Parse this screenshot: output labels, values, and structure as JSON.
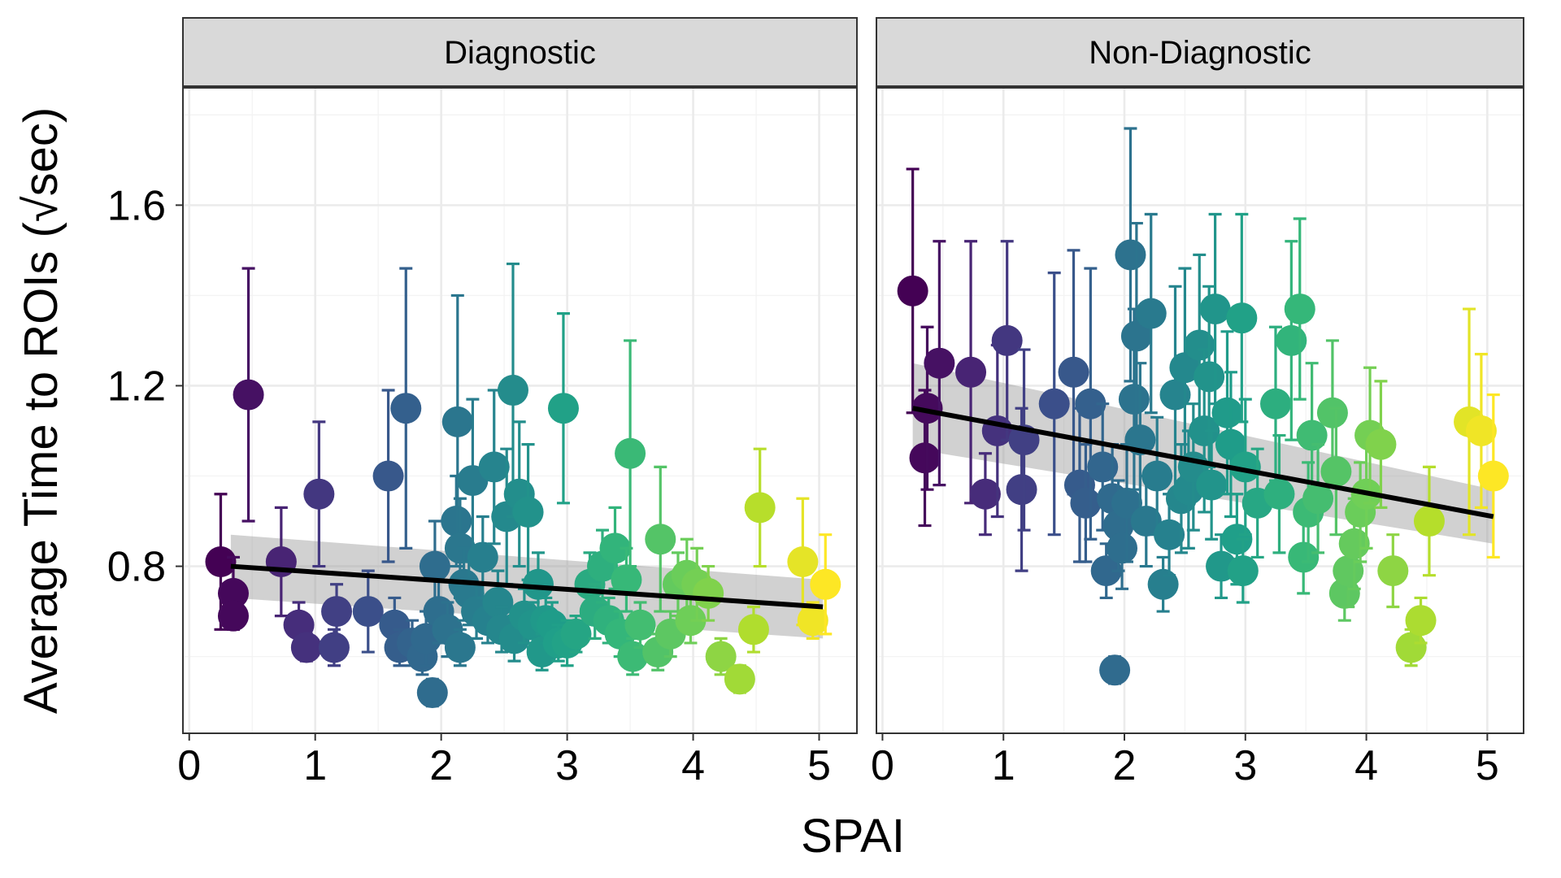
{
  "chart_data": {
    "type": "scatter",
    "xlabel": "SPAI",
    "ylabel": "Average Time to ROIs (√sec)",
    "xlim": [
      -0.05,
      5.3
    ],
    "ylim": [
      0.43,
      1.86
    ],
    "x_ticks": [
      0,
      1,
      2,
      3,
      4,
      5
    ],
    "y_ticks": [
      0.8,
      1.2,
      1.6
    ],
    "grid": true,
    "color_scale": "viridis",
    "colors": {
      "low": "#440154",
      "high": "#fde725",
      "trend_line": "#000000",
      "confidence_band": "#999999",
      "strip_background": "#d9d9d9",
      "grid": "#ebebeb"
    },
    "panels": [
      {
        "label": "Diagnostic",
        "trend": {
          "x": [
            0.33,
            5.03
          ],
          "y": [
            0.8,
            0.71
          ],
          "se_band_low": [
            0.73,
            0.64
          ],
          "se_band_high": [
            0.87,
            0.77
          ]
        },
        "points": [
          {
            "x": 0.25,
            "y": 0.81,
            "err": 0.15
          },
          {
            "x": 0.35,
            "y": 0.74,
            "err": 0.08
          },
          {
            "x": 0.35,
            "y": 0.69,
            "err": 0.03
          },
          {
            "x": 0.47,
            "y": 1.18,
            "err": 0.28
          },
          {
            "x": 0.73,
            "y": 0.81,
            "err": 0.12
          },
          {
            "x": 0.87,
            "y": 0.67,
            "err": 0.05
          },
          {
            "x": 0.93,
            "y": 0.62,
            "err": 0.03
          },
          {
            "x": 1.03,
            "y": 0.96,
            "err": 0.16
          },
          {
            "x": 1.15,
            "y": 0.62,
            "err": 0.04
          },
          {
            "x": 1.17,
            "y": 0.7,
            "err": 0.06
          },
          {
            "x": 1.42,
            "y": 0.7,
            "err": 0.09
          },
          {
            "x": 1.58,
            "y": 1.0,
            "err": 0.19
          },
          {
            "x": 1.63,
            "y": 0.67,
            "err": 0.06
          },
          {
            "x": 1.67,
            "y": 0.62,
            "err": 0.04
          },
          {
            "x": 1.72,
            "y": 1.15,
            "err": 0.31
          },
          {
            "x": 1.77,
            "y": 0.63,
            "err": 0.05
          },
          {
            "x": 1.85,
            "y": 0.6,
            "err": 0.04
          },
          {
            "x": 1.88,
            "y": 0.64,
            "err": 0.06
          },
          {
            "x": 1.93,
            "y": 0.52,
            "err": 0.03
          },
          {
            "x": 1.95,
            "y": 0.8,
            "err": 0.1
          },
          {
            "x": 1.98,
            "y": 0.7,
            "err": 0.07
          },
          {
            "x": 2.05,
            "y": 0.66,
            "err": 0.06
          },
          {
            "x": 2.12,
            "y": 0.9,
            "err": 0.1
          },
          {
            "x": 2.13,
            "y": 1.12,
            "err": 0.28
          },
          {
            "x": 2.15,
            "y": 0.84,
            "err": 0.11
          },
          {
            "x": 2.15,
            "y": 0.62,
            "err": 0.04
          },
          {
            "x": 2.18,
            "y": 0.76,
            "err": 0.08
          },
          {
            "x": 2.22,
            "y": 0.74,
            "err": 0.07
          },
          {
            "x": 2.25,
            "y": 0.99,
            "err": 0.18
          },
          {
            "x": 2.28,
            "y": 0.7,
            "err": 0.06
          },
          {
            "x": 2.33,
            "y": 0.82,
            "err": 0.09
          },
          {
            "x": 2.37,
            "y": 0.68,
            "err": 0.05
          },
          {
            "x": 2.42,
            "y": 1.02,
            "err": 0.17
          },
          {
            "x": 2.45,
            "y": 0.72,
            "err": 0.07
          },
          {
            "x": 2.48,
            "y": 0.66,
            "err": 0.05
          },
          {
            "x": 2.52,
            "y": 0.91,
            "err": 0.15
          },
          {
            "x": 2.57,
            "y": 1.19,
            "err": 0.28
          },
          {
            "x": 2.58,
            "y": 0.64,
            "err": 0.05
          },
          {
            "x": 2.62,
            "y": 0.96,
            "err": 0.16
          },
          {
            "x": 2.66,
            "y": 0.69,
            "err": 0.06
          },
          {
            "x": 2.69,
            "y": 0.92,
            "err": 0.15
          },
          {
            "x": 2.73,
            "y": 0.67,
            "err": 0.05
          },
          {
            "x": 2.77,
            "y": 0.76,
            "err": 0.07
          },
          {
            "x": 2.8,
            "y": 0.61,
            "err": 0.04
          },
          {
            "x": 2.83,
            "y": 0.68,
            "err": 0.05
          },
          {
            "x": 2.88,
            "y": 0.67,
            "err": 0.05
          },
          {
            "x": 2.93,
            "y": 0.63,
            "err": 0.04
          },
          {
            "x": 2.97,
            "y": 1.15,
            "err": 0.21
          },
          {
            "x": 3.0,
            "y": 0.63,
            "err": 0.05
          },
          {
            "x": 3.07,
            "y": 0.65,
            "err": 0.04
          },
          {
            "x": 3.18,
            "y": 0.76,
            "err": 0.07
          },
          {
            "x": 3.22,
            "y": 0.7,
            "err": 0.06
          },
          {
            "x": 3.28,
            "y": 0.8,
            "err": 0.08
          },
          {
            "x": 3.33,
            "y": 0.68,
            "err": 0.05
          },
          {
            "x": 3.38,
            "y": 0.84,
            "err": 0.09
          },
          {
            "x": 3.42,
            "y": 0.65,
            "err": 0.05
          },
          {
            "x": 3.47,
            "y": 0.77,
            "err": 0.07
          },
          {
            "x": 3.5,
            "y": 1.05,
            "err": 0.25
          },
          {
            "x": 3.52,
            "y": 0.6,
            "err": 0.04
          },
          {
            "x": 3.58,
            "y": 0.67,
            "err": 0.05
          },
          {
            "x": 3.72,
            "y": 0.61,
            "err": 0.04
          },
          {
            "x": 3.74,
            "y": 0.86,
            "err": 0.16
          },
          {
            "x": 3.82,
            "y": 0.65,
            "err": 0.05
          },
          {
            "x": 3.88,
            "y": 0.76,
            "err": 0.07
          },
          {
            "x": 3.95,
            "y": 0.78,
            "err": 0.08
          },
          {
            "x": 3.98,
            "y": 0.68,
            "err": 0.05
          },
          {
            "x": 4.03,
            "y": 0.76,
            "err": 0.08
          },
          {
            "x": 4.12,
            "y": 0.74,
            "err": 0.06
          },
          {
            "x": 4.22,
            "y": 0.6,
            "err": 0.04
          },
          {
            "x": 4.37,
            "y": 0.55,
            "err": 0.03
          },
          {
            "x": 4.48,
            "y": 0.66,
            "err": 0.05
          },
          {
            "x": 4.53,
            "y": 0.93,
            "err": 0.13
          },
          {
            "x": 4.87,
            "y": 0.81,
            "err": 0.14
          },
          {
            "x": 4.95,
            "y": 0.68,
            "err": 0.04
          },
          {
            "x": 5.05,
            "y": 0.76,
            "err": 0.11
          }
        ]
      },
      {
        "label": "Non-Diagnostic",
        "trend": {
          "x": [
            0.25,
            5.05
          ],
          "y": [
            1.15,
            0.91
          ],
          "se_band_low": [
            1.06,
            0.85
          ],
          "se_band_high": [
            1.25,
            0.97
          ]
        },
        "points": [
          {
            "x": 0.25,
            "y": 1.41,
            "err": 0.27
          },
          {
            "x": 0.35,
            "y": 1.04,
            "err": 0.15
          },
          {
            "x": 0.37,
            "y": 1.15,
            "err": 0.18
          },
          {
            "x": 0.47,
            "y": 1.25,
            "err": 0.27
          },
          {
            "x": 0.73,
            "y": 1.23,
            "err": 0.29
          },
          {
            "x": 0.85,
            "y": 0.96,
            "err": 0.09
          },
          {
            "x": 0.95,
            "y": 1.1,
            "err": 0.19
          },
          {
            "x": 1.03,
            "y": 1.3,
            "err": 0.22
          },
          {
            "x": 1.15,
            "y": 0.97,
            "err": 0.18
          },
          {
            "x": 1.17,
            "y": 1.08,
            "err": 0.2
          },
          {
            "x": 1.42,
            "y": 1.16,
            "err": 0.29
          },
          {
            "x": 1.58,
            "y": 1.23,
            "err": 0.27
          },
          {
            "x": 1.63,
            "y": 0.98,
            "err": 0.17
          },
          {
            "x": 1.68,
            "y": 0.94,
            "err": 0.13
          },
          {
            "x": 1.72,
            "y": 1.16,
            "err": 0.3
          },
          {
            "x": 1.82,
            "y": 1.02,
            "err": 0.14
          },
          {
            "x": 1.85,
            "y": 0.79,
            "err": 0.06
          },
          {
            "x": 1.9,
            "y": 0.95,
            "err": 0.12
          },
          {
            "x": 1.92,
            "y": 0.57,
            "err": 0.03
          },
          {
            "x": 1.95,
            "y": 0.89,
            "err": 0.1
          },
          {
            "x": 1.98,
            "y": 0.84,
            "err": 0.09
          },
          {
            "x": 2.02,
            "y": 0.94,
            "err": 0.13
          },
          {
            "x": 2.05,
            "y": 1.49,
            "err": 0.28
          },
          {
            "x": 2.08,
            "y": 1.17,
            "err": 0.2
          },
          {
            "x": 2.1,
            "y": 1.31,
            "err": 0.25
          },
          {
            "x": 2.13,
            "y": 1.08,
            "err": 0.17
          },
          {
            "x": 2.18,
            "y": 0.9,
            "err": 0.1
          },
          {
            "x": 2.22,
            "y": 1.36,
            "err": 0.22
          },
          {
            "x": 2.27,
            "y": 1.0,
            "err": 0.13
          },
          {
            "x": 2.32,
            "y": 0.76,
            "err": 0.06
          },
          {
            "x": 2.37,
            "y": 0.87,
            "err": 0.09
          },
          {
            "x": 2.42,
            "y": 1.18,
            "err": 0.24
          },
          {
            "x": 2.47,
            "y": 0.95,
            "err": 0.12
          },
          {
            "x": 2.5,
            "y": 1.24,
            "err": 0.22
          },
          {
            "x": 2.53,
            "y": 0.97,
            "err": 0.13
          },
          {
            "x": 2.57,
            "y": 1.02,
            "err": 0.14
          },
          {
            "x": 2.62,
            "y": 1.29,
            "err": 0.2
          },
          {
            "x": 2.66,
            "y": 1.1,
            "err": 0.18
          },
          {
            "x": 2.7,
            "y": 1.22,
            "err": 0.2
          },
          {
            "x": 2.72,
            "y": 0.98,
            "err": 0.12
          },
          {
            "x": 2.75,
            "y": 1.37,
            "err": 0.21
          },
          {
            "x": 2.8,
            "y": 0.8,
            "err": 0.07
          },
          {
            "x": 2.85,
            "y": 1.14,
            "err": 0.18
          },
          {
            "x": 2.88,
            "y": 1.07,
            "err": 0.16
          },
          {
            "x": 2.93,
            "y": 0.86,
            "err": 0.1
          },
          {
            "x": 2.97,
            "y": 1.35,
            "err": 0.23
          },
          {
            "x": 2.98,
            "y": 0.79,
            "err": 0.07
          },
          {
            "x": 3.0,
            "y": 1.02,
            "err": 0.15
          },
          {
            "x": 3.1,
            "y": 0.94,
            "err": 0.12
          },
          {
            "x": 3.25,
            "y": 1.16,
            "err": 0.17
          },
          {
            "x": 3.28,
            "y": 0.96,
            "err": 0.13
          },
          {
            "x": 3.38,
            "y": 1.3,
            "err": 0.22
          },
          {
            "x": 3.45,
            "y": 1.37,
            "err": 0.2
          },
          {
            "x": 3.48,
            "y": 0.82,
            "err": 0.08
          },
          {
            "x": 3.52,
            "y": 0.92,
            "err": 0.11
          },
          {
            "x": 3.55,
            "y": 1.09,
            "err": 0.16
          },
          {
            "x": 3.6,
            "y": 0.95,
            "err": 0.12
          },
          {
            "x": 3.72,
            "y": 1.14,
            "err": 0.16
          },
          {
            "x": 3.75,
            "y": 1.01,
            "err": 0.14
          },
          {
            "x": 3.82,
            "y": 0.74,
            "err": 0.06
          },
          {
            "x": 3.85,
            "y": 0.79,
            "err": 0.08
          },
          {
            "x": 3.9,
            "y": 0.85,
            "err": 0.1
          },
          {
            "x": 3.95,
            "y": 0.92,
            "err": 0.11
          },
          {
            "x": 4.0,
            "y": 0.96,
            "err": 0.12
          },
          {
            "x": 4.03,
            "y": 1.09,
            "err": 0.15
          },
          {
            "x": 4.12,
            "y": 1.07,
            "err": 0.14
          },
          {
            "x": 4.22,
            "y": 0.79,
            "err": 0.08
          },
          {
            "x": 4.37,
            "y": 0.62,
            "err": 0.04
          },
          {
            "x": 4.45,
            "y": 0.68,
            "err": 0.05
          },
          {
            "x": 4.52,
            "y": 0.9,
            "err": 0.12
          },
          {
            "x": 4.85,
            "y": 1.12,
            "err": 0.25
          },
          {
            "x": 4.95,
            "y": 1.1,
            "err": 0.17
          },
          {
            "x": 5.05,
            "y": 1.0,
            "err": 0.18
          }
        ]
      }
    ]
  }
}
